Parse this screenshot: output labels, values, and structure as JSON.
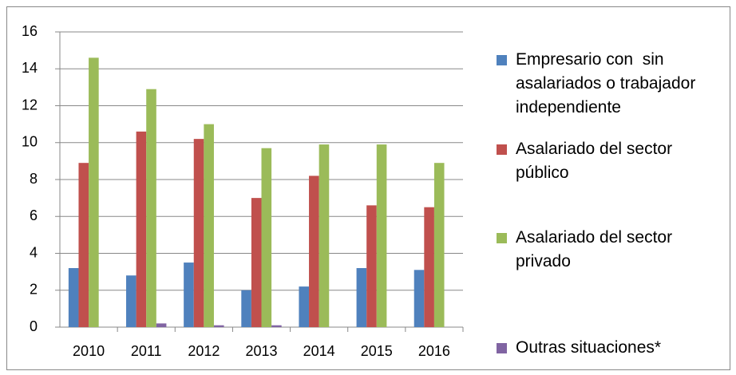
{
  "chart_data": {
    "type": "bar",
    "categories": [
      "2010",
      "2011",
      "2012",
      "2013",
      "2014",
      "2015",
      "2016"
    ],
    "series": [
      {
        "name": "Empresario con  sin asalariados o trabajador independiente",
        "color": "#4f81bd",
        "values": [
          3.2,
          2.8,
          3.5,
          2.0,
          2.2,
          3.2,
          3.1
        ]
      },
      {
        "name": "Asalariado del sector público",
        "color": "#c0504d",
        "values": [
          8.9,
          10.6,
          10.2,
          7.0,
          8.2,
          6.6,
          6.5
        ]
      },
      {
        "name": "Asalariado del sector privado",
        "color": "#9bbb59",
        "values": [
          14.6,
          12.9,
          11.0,
          9.7,
          9.9,
          9.9,
          8.9
        ]
      },
      {
        "name": "Outras situaciones*",
        "color": "#8064a2",
        "values": [
          0,
          0.2,
          0.1,
          0.1,
          0,
          0,
          0
        ]
      }
    ],
    "ylim": [
      0,
      16
    ],
    "yticks": [
      0,
      2,
      4,
      6,
      8,
      10,
      12,
      14,
      16
    ],
    "grid": true,
    "legend": "right"
  }
}
